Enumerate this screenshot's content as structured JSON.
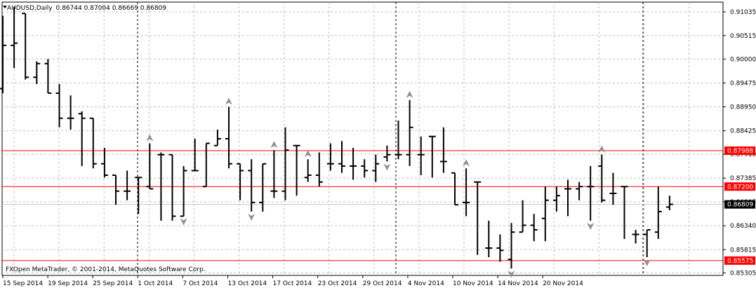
{
  "header": {
    "symbol": "AUDUSD,Daily",
    "ohlc_text": "0.86744 0.87004 0.86669 0.86809"
  },
  "copyright": "FXOpen MetaTrader, © 2001-2014, MetaQuotes Software Corp.",
  "colors": {
    "background": "#ffffff",
    "bars": "#000000",
    "grid": "#c0c0c0",
    "level_lines": "#ff0000",
    "level_label_bg": "#ff0000",
    "current_price_bg": "#000000",
    "fractal": "#909090"
  },
  "y_axis_ticks": [
    "0.91035",
    "0.90515",
    "0.90000",
    "0.89475",
    "0.88950",
    "0.88425",
    "0.87910",
    "0.87385",
    "0.86865",
    "0.86340",
    "0.85815",
    "0.85305"
  ],
  "level_labels": [
    "0.87988",
    "0.87200",
    "0.85575"
  ],
  "current_price": "0.86809",
  "x_axis_ticks": [
    "15 Sep 2014",
    "19 Sep 2014",
    "25 Sep 2014",
    "1 Oct 2014",
    "7 Oct 2014",
    "13 Oct 2014",
    "17 Oct 2014",
    "23 Oct 2014",
    "29 Oct 2014",
    "4 Nov 2014",
    "10 Nov 2014",
    "14 Nov 2014",
    "20 Nov 2014"
  ],
  "chart_data": {
    "type": "ohlc",
    "title": "AUDUSD,Daily",
    "ylim": [
      0.8525,
      0.9125
    ],
    "levels": [
      0.87988,
      0.872,
      0.85575
    ],
    "current_price": 0.86809,
    "period_separators": [
      "1 Oct 2014",
      "3 Nov 2014",
      "1 Dec 2014"
    ],
    "bars": [
      {
        "open": 0.8935,
        "high": 0.9095,
        "low": 0.8925,
        "close": 0.903
      },
      {
        "open": 0.903,
        "high": 0.9115,
        "low": 0.898,
        "close": 0.9035
      },
      {
        "open": 0.91,
        "high": 0.91,
        "low": 0.8955,
        "close": 0.896
      },
      {
        "open": 0.896,
        "high": 0.8995,
        "low": 0.8945,
        "close": 0.899
      },
      {
        "open": 0.899,
        "high": 0.9,
        "low": 0.8925,
        "close": 0.8925
      },
      {
        "open": 0.8925,
        "high": 0.8945,
        "low": 0.885,
        "close": 0.887
      },
      {
        "open": 0.887,
        "high": 0.892,
        "low": 0.8845,
        "close": 0.887
      },
      {
        "open": 0.888,
        "high": 0.8885,
        "low": 0.8765,
        "close": 0.887
      },
      {
        "open": 0.887,
        "high": 0.887,
        "low": 0.876,
        "close": 0.877
      },
      {
        "open": 0.877,
        "high": 0.8805,
        "low": 0.874,
        "close": 0.8745
      },
      {
        "open": 0.8745,
        "high": 0.8745,
        "low": 0.868,
        "close": 0.871
      },
      {
        "open": 0.871,
        "high": 0.8755,
        "low": 0.869,
        "close": 0.871
      },
      {
        "open": 0.874,
        "high": 0.874,
        "low": 0.866,
        "close": 0.874
      },
      {
        "open": 0.872,
        "high": 0.8815,
        "low": 0.8715,
        "close": 0.8715
      },
      {
        "open": 0.879,
        "high": 0.8795,
        "low": 0.8645,
        "close": 0.879
      },
      {
        "open": 0.879,
        "high": 0.879,
        "low": 0.8645,
        "close": 0.8655
      },
      {
        "open": 0.8655,
        "high": 0.8765,
        "low": 0.8655,
        "close": 0.8755
      },
      {
        "open": 0.8755,
        "high": 0.8825,
        "low": 0.8755,
        "close": 0.8755
      },
      {
        "open": 0.872,
        "high": 0.8815,
        "low": 0.872,
        "close": 0.8815
      },
      {
        "open": 0.881,
        "high": 0.8845,
        "low": 0.881,
        "close": 0.8825
      },
      {
        "open": 0.8825,
        "high": 0.8895,
        "low": 0.876,
        "close": 0.877
      },
      {
        "open": 0.877,
        "high": 0.877,
        "low": 0.869,
        "close": 0.8755
      },
      {
        "open": 0.8755,
        "high": 0.878,
        "low": 0.8665,
        "close": 0.8685
      },
      {
        "open": 0.8685,
        "high": 0.877,
        "low": 0.8665,
        "close": 0.877
      },
      {
        "open": 0.871,
        "high": 0.88,
        "low": 0.8695,
        "close": 0.871
      },
      {
        "open": 0.871,
        "high": 0.885,
        "low": 0.869,
        "close": 0.88
      },
      {
        "open": 0.881,
        "high": 0.881,
        "low": 0.87,
        "close": 0.881
      },
      {
        "open": 0.874,
        "high": 0.878,
        "low": 0.873,
        "close": 0.8745
      },
      {
        "open": 0.8745,
        "high": 0.8795,
        "low": 0.872,
        "close": 0.873
      },
      {
        "open": 0.877,
        "high": 0.8815,
        "low": 0.8755,
        "close": 0.877
      },
      {
        "open": 0.877,
        "high": 0.882,
        "low": 0.875,
        "close": 0.8765
      },
      {
        "open": 0.8765,
        "high": 0.8805,
        "low": 0.8735,
        "close": 0.8765
      },
      {
        "open": 0.8765,
        "high": 0.878,
        "low": 0.874,
        "close": 0.8755
      },
      {
        "open": 0.8755,
        "high": 0.879,
        "low": 0.873,
        "close": 0.877
      },
      {
        "open": 0.8785,
        "high": 0.881,
        "low": 0.8775,
        "close": 0.879
      },
      {
        "open": 0.879,
        "high": 0.8865,
        "low": 0.878,
        "close": 0.879
      },
      {
        "open": 0.879,
        "high": 0.891,
        "low": 0.8765,
        "close": 0.885
      },
      {
        "open": 0.879,
        "high": 0.883,
        "low": 0.8745,
        "close": 0.879
      },
      {
        "open": 0.883,
        "high": 0.883,
        "low": 0.874,
        "close": 0.883
      },
      {
        "open": 0.8775,
        "high": 0.885,
        "low": 0.875,
        "close": 0.8775
      },
      {
        "open": 0.875,
        "high": 0.875,
        "low": 0.868,
        "close": 0.868
      },
      {
        "open": 0.8685,
        "high": 0.876,
        "low": 0.8655,
        "close": 0.8685
      },
      {
        "open": 0.873,
        "high": 0.873,
        "low": 0.857,
        "close": 0.873
      },
      {
        "open": 0.8585,
        "high": 0.8645,
        "low": 0.8565,
        "close": 0.8585
      },
      {
        "open": 0.8585,
        "high": 0.8615,
        "low": 0.8555,
        "close": 0.858
      },
      {
        "open": 0.856,
        "high": 0.864,
        "low": 0.854,
        "close": 0.862
      },
      {
        "open": 0.862,
        "high": 0.869,
        "low": 0.862,
        "close": 0.8635
      },
      {
        "open": 0.8635,
        "high": 0.866,
        "low": 0.86,
        "close": 0.8625
      },
      {
        "open": 0.865,
        "high": 0.872,
        "low": 0.86,
        "close": 0.869
      },
      {
        "open": 0.869,
        "high": 0.872,
        "low": 0.8665,
        "close": 0.87
      },
      {
        "open": 0.8715,
        "high": 0.8735,
        "low": 0.8655,
        "close": 0.8715
      },
      {
        "open": 0.8715,
        "high": 0.873,
        "low": 0.869,
        "close": 0.872
      },
      {
        "open": 0.872,
        "high": 0.8765,
        "low": 0.8645,
        "close": 0.872
      },
      {
        "open": 0.8765,
        "high": 0.879,
        "low": 0.8685,
        "close": 0.869
      },
      {
        "open": 0.8705,
        "high": 0.875,
        "low": 0.868,
        "close": 0.8705
      },
      {
        "open": 0.872,
        "high": 0.872,
        "low": 0.8605,
        "close": 0.872
      },
      {
        "open": 0.8615,
        "high": 0.8625,
        "low": 0.8595,
        "close": 0.8615
      },
      {
        "open": 0.8615,
        "high": 0.8625,
        "low": 0.8565,
        "close": 0.8625
      },
      {
        "open": 0.862,
        "high": 0.872,
        "low": 0.8605,
        "close": 0.8665
      },
      {
        "open": 0.8675,
        "high": 0.87,
        "low": 0.8668,
        "close": 0.8681
      }
    ],
    "fractals_up": [
      13,
      20,
      24,
      27,
      36,
      41,
      53
    ],
    "fractals_down": [
      16,
      22,
      34,
      45,
      52,
      57
    ]
  }
}
